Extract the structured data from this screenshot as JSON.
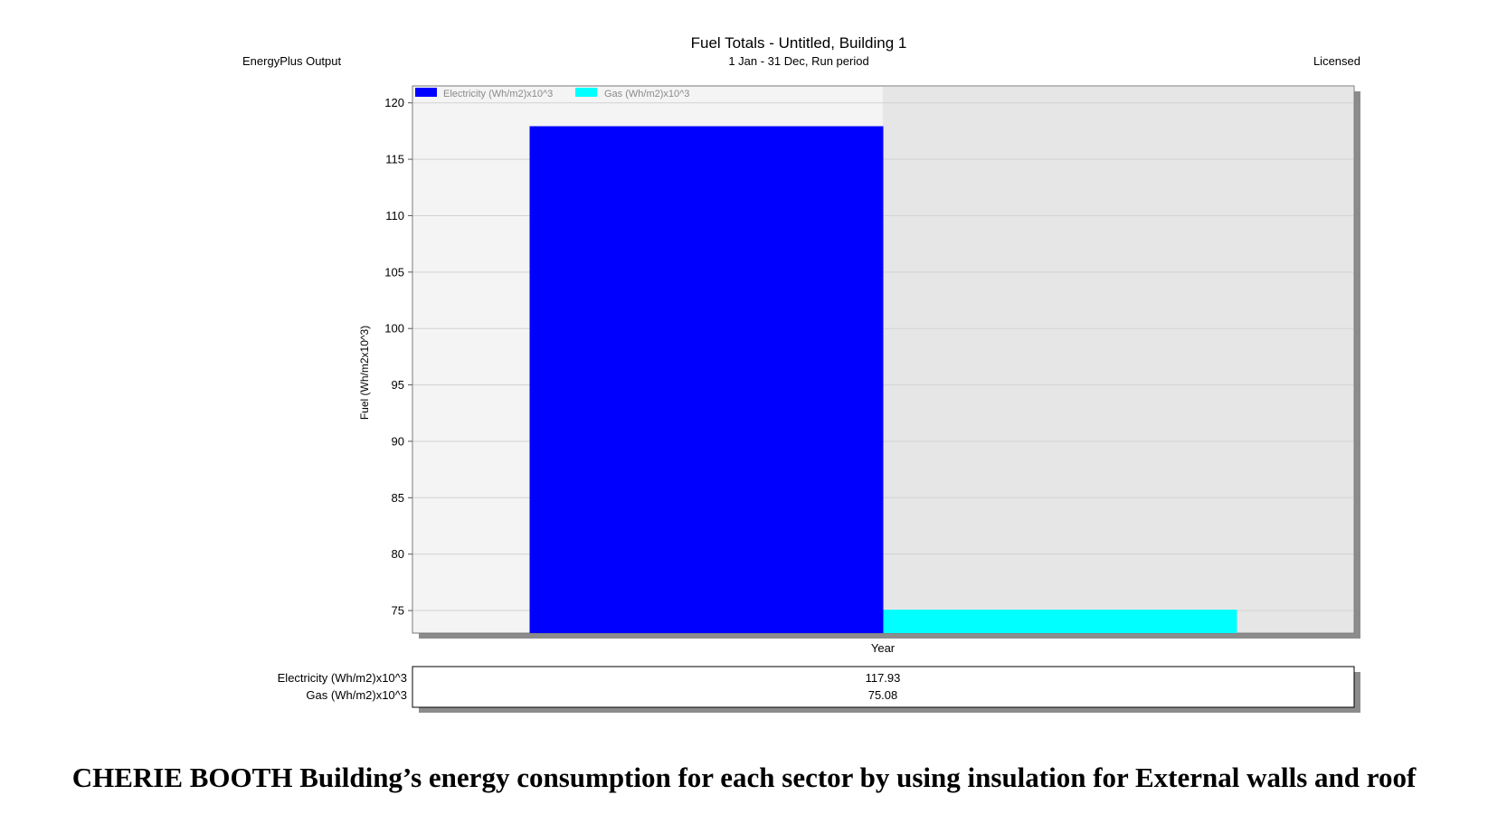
{
  "header": {
    "left": "EnergyPlus Output",
    "right": "Licensed"
  },
  "chart_data": {
    "type": "bar",
    "title": "Fuel Totals - Untitled, Building 1",
    "subtitle": "1 Jan - 31 Dec, Run period",
    "xlabel": "",
    "ylabel": "Fuel (Wh/m2x10^3)",
    "categories": [
      "Year"
    ],
    "series": [
      {
        "name": "Electricity (Wh/m2)x10^3",
        "values": [
          117.93
        ],
        "color": "#0000ff"
      },
      {
        "name": "Gas (Wh/m2)x10^3",
        "values": [
          75.08
        ],
        "color": "#00ffff"
      }
    ],
    "ylim": [
      73,
      121.5
    ],
    "yticks": [
      75,
      80,
      85,
      90,
      95,
      100,
      105,
      110,
      115,
      120
    ],
    "grid": true,
    "legend_position": "top-left",
    "data_table": {
      "rows": [
        {
          "label": "Electricity (Wh/m2)x10^3",
          "value": "117.93"
        },
        {
          "label": "Gas (Wh/m2)x10^3",
          "value": "75.08"
        }
      ]
    }
  },
  "caption": "CHERIE BOOTH Building’s energy consumption for each sector by using insulation for External walls and roof"
}
